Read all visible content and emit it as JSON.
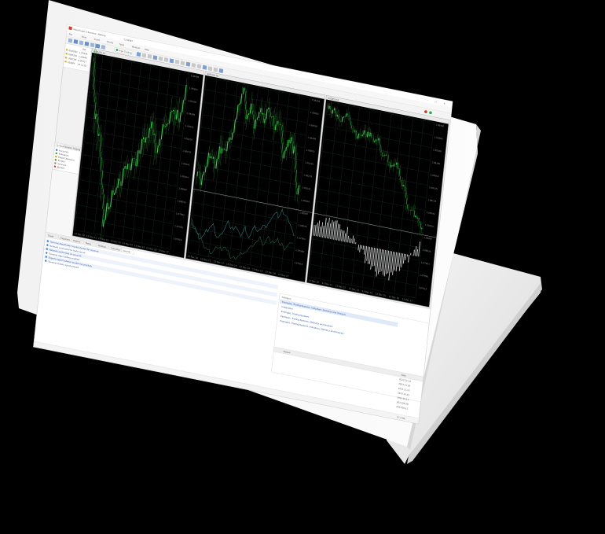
{
  "window": {
    "title": "MetaTrader 5 Terminal - Netting",
    "account": "1234567"
  },
  "menu": [
    "File",
    "View",
    "Insert",
    "Charts",
    "Tools",
    "Window",
    "Help"
  ],
  "toolbar": {
    "algo_trading_label": "Algo Trading"
  },
  "market_watch": {
    "header": "Bid",
    "rows": [
      {
        "symbol": "EURUSD",
        "bid": "1.07854"
      },
      {
        "symbol": "GBPUSD",
        "bid": "1.26940"
      },
      {
        "symbol": "USDCHF",
        "bid": "0.90117"
      },
      {
        "symbol": "USDJPY",
        "bid": "151.218"
      }
    ]
  },
  "navigator": {
    "tabs": [
      "Symbols",
      "Details",
      "Trading"
    ],
    "items": [
      "Accounts",
      "Indicators",
      "Expert Advisors",
      "Scripts",
      "Services",
      "Market"
    ]
  },
  "charts": [
    {
      "title": "EURUSD,H1",
      "indicator": ""
    },
    {
      "title": "GBPUSD,H1",
      "indicator": ""
    },
    {
      "title": "USDJPY,H4",
      "indicator": ""
    }
  ],
  "bottom_tabs": [
    "Trade",
    "Exposure",
    "History",
    "News",
    "Mailbox",
    "Calendar",
    "Journal"
  ],
  "journal": {
    "lines": [
      "Terminal  MetaTrader 5 build started for account",
      "Network   connected to trade server",
      "Network   authorized on account",
      "Terminal  Algo trading enabled",
      "Experts   expert advisor loaded successfully",
      "Terminal  history synchronized"
    ]
  },
  "right_panel": {
    "header": "Category",
    "items": [
      "Examples, Trading Systems, Indicators, Statistics and Analysis",
      "Integration",
      "Examples, Trading Systems",
      "Examples, Trading Systems, Statistics and Analysis",
      "Examples, Trading Systems, Indicators, Statistics and Analysis"
    ],
    "date_header": "Date",
    "dates": [
      "2023.12.14",
      "2023.11.30",
      "2023.11.22",
      "2023.10.25",
      "2023.09.12",
      "2023.08.28",
      "2023.08.21"
    ],
    "output_label": "Output"
  },
  "status": {
    "ping": "17.7 Mb"
  },
  "colors": {
    "bull": "#35d04a",
    "bear": "#1c7a2a",
    "grid": "#1a3322",
    "screen": "#000000",
    "bezel": "#f7f7f7"
  }
}
